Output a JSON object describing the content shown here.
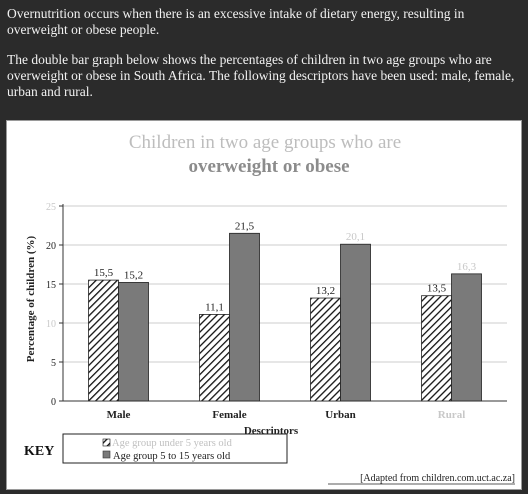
{
  "intro": {
    "p1": "Overnutrition occurs when there is an excessive intake of dietary energy, resulting in overweight or obese people.",
    "p2": "The double bar graph below shows the percentages of children in two age groups who are overweight or obese in South Africa. The following descriptors have been used: male, female, urban and rural."
  },
  "key_label": "KEY",
  "legend": [
    {
      "name": "Age group under 5 years old",
      "style": "hatched"
    },
    {
      "name": "Age group 5 to 15 years old",
      "style": "solid"
    }
  ],
  "source": "[Adapted from children.com.uct.ac.za]",
  "chart_data": {
    "type": "bar",
    "title": "Children in two age groups who are",
    "subtitle": "overweight or obese",
    "xlabel": "Descriptors",
    "ylabel": "Percentage of children (%)",
    "ylim": [
      0,
      25
    ],
    "yticks": [
      0,
      5,
      10,
      15,
      20,
      25
    ],
    "grid": true,
    "categories": [
      "Male",
      "Female",
      "Urban",
      "Rural"
    ],
    "series": [
      {
        "name": "Age group under 5 years old",
        "values": [
          15.5,
          11.1,
          13.2,
          13.5
        ],
        "labels": [
          "15,5",
          "11,1",
          "13,2",
          "13,5"
        ]
      },
      {
        "name": "Age group 5 to 15 years old",
        "values": [
          15.2,
          21.5,
          20.1,
          16.3
        ],
        "labels": [
          "15,2",
          "21,5",
          "20,1",
          "16,3"
        ]
      }
    ],
    "colors": {
      "solid": "#7a7a7a",
      "hatch_line": "#111111",
      "axis": "#333333",
      "grid": "#bbbbbb"
    }
  }
}
